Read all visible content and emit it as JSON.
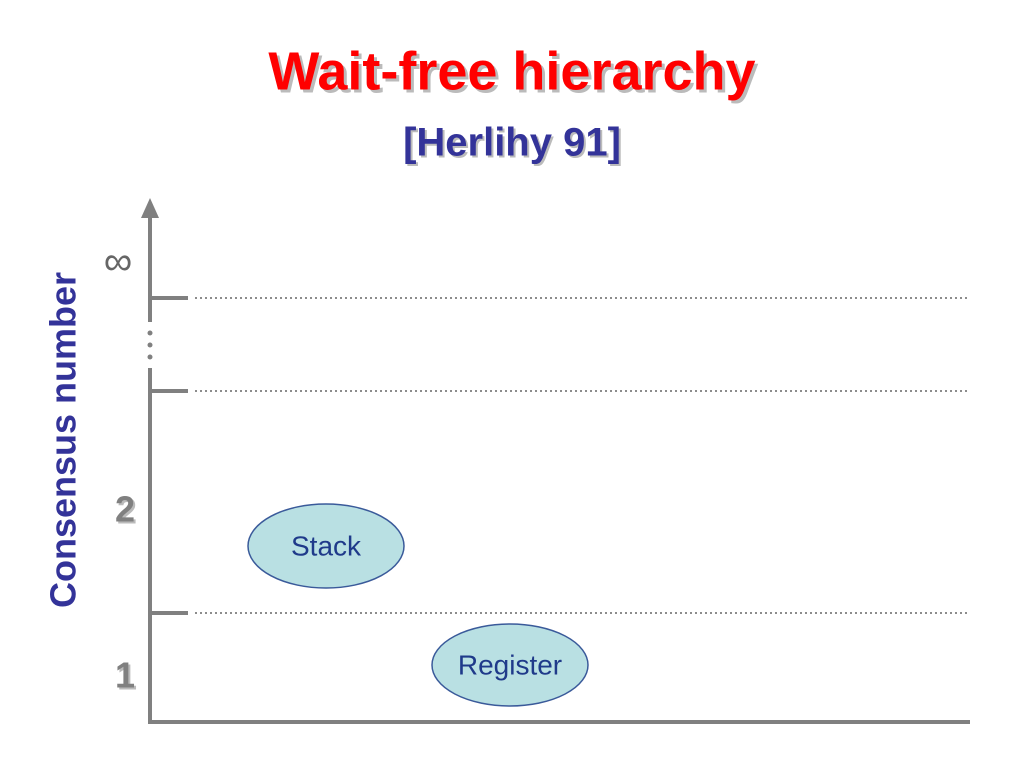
{
  "title": "Wait-free hierarchy",
  "subtitle": "[Herlihy 91]",
  "axis_label": "Consensus number",
  "levels": [
    "∞",
    "2",
    "1"
  ],
  "nodes": [
    "Stack",
    "Register"
  ]
}
